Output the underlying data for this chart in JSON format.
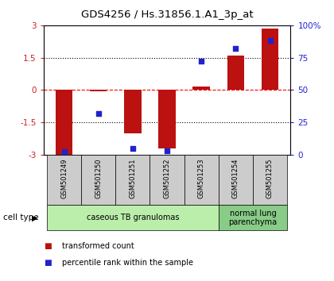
{
  "title": "GDS4256 / Hs.31856.1.A1_3p_at",
  "samples": [
    "GSM501249",
    "GSM501250",
    "GSM501251",
    "GSM501252",
    "GSM501253",
    "GSM501254",
    "GSM501255"
  ],
  "transformed_count": [
    -3.0,
    -0.05,
    -2.0,
    -2.7,
    0.15,
    1.6,
    2.85
  ],
  "percentile_rank": [
    2,
    32,
    5,
    3,
    72,
    82,
    88
  ],
  "bar_color": "#bb1111",
  "dot_color": "#2222cc",
  "ylim_left": [
    -3,
    3
  ],
  "ylim_right": [
    0,
    100
  ],
  "yticks_left": [
    -3,
    -1.5,
    0,
    1.5,
    3
  ],
  "yticks_right": [
    0,
    25,
    50,
    75,
    100
  ],
  "ytick_labels_left": [
    "-3",
    "-1.5",
    "0",
    "1.5",
    "3"
  ],
  "ytick_labels_right": [
    "0",
    "25",
    "50",
    "75",
    "100%"
  ],
  "hlines": [
    0,
    1.5,
    -1.5
  ],
  "hline_styles": [
    "dashed",
    "dotted",
    "dotted"
  ],
  "hline_colors": [
    "red",
    "black",
    "black"
  ],
  "group_spans": [
    {
      "start": 0,
      "end": 4,
      "label": "caseous TB granulomas",
      "color": "#bbeeaa"
    },
    {
      "start": 5,
      "end": 6,
      "label": "normal lung\nparenchyma",
      "color": "#88cc88"
    }
  ],
  "legend_items": [
    {
      "label": "transformed count",
      "color": "#bb1111"
    },
    {
      "label": "percentile rank within the sample",
      "color": "#2222cc"
    }
  ],
  "ylabel_left_color": "#cc2222",
  "ylabel_right_color": "#2222cc",
  "bg_color": "#ffffff",
  "plot_bg_color": "#ffffff",
  "cell_type_label": "cell type",
  "sample_box_color": "#cccccc",
  "bar_width": 0.5
}
